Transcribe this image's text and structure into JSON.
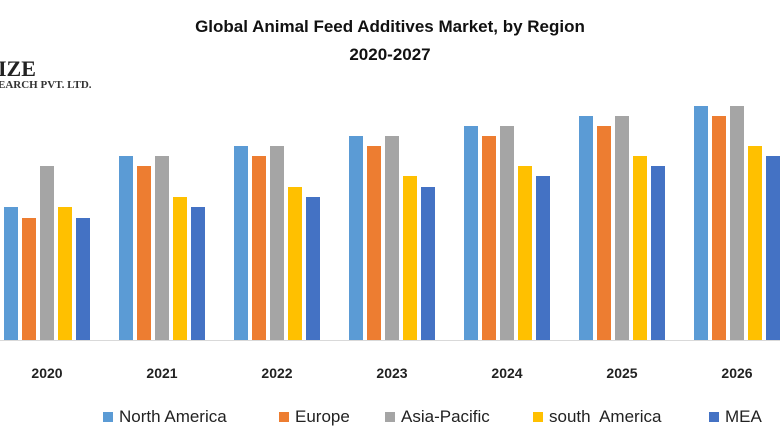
{
  "chart_data": {
    "type": "bar",
    "title": "Global Animal Feed Additives Market, by Region",
    "subtitle": "2020-2027",
    "xlabel": "",
    "ylabel": "",
    "categories": [
      "2020",
      "2021",
      "2022",
      "2023",
      "2024",
      "2025",
      "2026"
    ],
    "series": [
      {
        "name": "North America",
        "color": "#5B9BD5",
        "values": [
          13.3,
          18.4,
          19.4,
          20.4,
          21.4,
          22.4,
          23.4
        ]
      },
      {
        "name": "Europe",
        "color": "#ED7D31",
        "values": [
          12.2,
          17.4,
          18.4,
          19.4,
          20.4,
          21.4,
          22.4
        ]
      },
      {
        "name": "Asia-Pacific",
        "color": "#A5A5A5",
        "values": [
          17.4,
          18.4,
          19.4,
          20.4,
          21.4,
          22.4,
          23.4
        ]
      },
      {
        "name": "south  America",
        "color": "#FFC000",
        "values": [
          13.3,
          14.3,
          15.3,
          16.4,
          17.4,
          18.4,
          19.4
        ]
      },
      {
        "name": "MEA",
        "color": "#4472C4",
        "values": [
          12.2,
          13.3,
          14.3,
          15.3,
          16.4,
          17.4,
          18.4
        ]
      }
    ],
    "ylim": [
      0,
      25
    ],
    "grid": false,
    "legend_position": "bottom"
  },
  "logo": {
    "line1": "IZE",
    "line2": "EARCH PVT. LTD."
  }
}
